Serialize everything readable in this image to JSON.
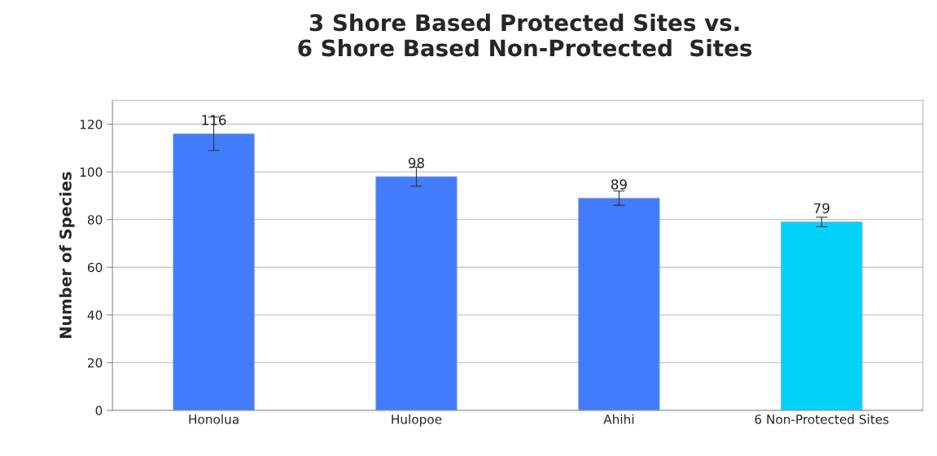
{
  "chart_data": {
    "type": "bar",
    "title": "3 Shore Based Protected Sites vs.\n6 Shore Based Non-Protected  Sites",
    "ylabel": "Number of Species",
    "categories": [
      "Honolua",
      "Hulopoe",
      "Ahihi",
      "6 Non-Protected Sites"
    ],
    "values": [
      116,
      98,
      89,
      79
    ],
    "colors": [
      "#427cfc",
      "#427cfc",
      "#427cfc",
      "#00d2fc"
    ],
    "errors": [
      7,
      4,
      3,
      2
    ],
    "data_labels": true,
    "ylim": [
      0,
      130
    ],
    "yticks": [
      0,
      20,
      40,
      60,
      80,
      100,
      120
    ],
    "grid": "y",
    "legend": false
  }
}
